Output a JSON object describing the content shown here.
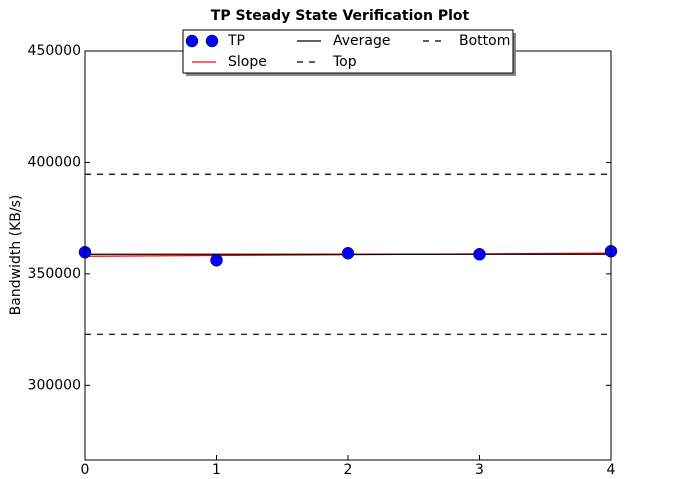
{
  "chart_data": {
    "type": "line",
    "title": "TP Steady State Verification Plot",
    "y_label": "Bandwidth (KB/s)",
    "xlim": [
      0,
      4
    ],
    "xticks": [
      0,
      1,
      2,
      3,
      4
    ],
    "ylim": [
      266500,
      450000
    ],
    "yticks": [
      300000,
      350000,
      400000,
      450000
    ],
    "legend": "upper center",
    "series": [
      {
        "name": "TP",
        "style": "marker",
        "color": "#0000ff",
        "x": [
          0,
          1,
          2,
          3,
          4
        ],
        "values": [
          359700,
          356100,
          359250,
          358800,
          360150
        ]
      },
      {
        "name": "Slope",
        "style": "solid",
        "color": "#ff0000",
        "x": [
          0,
          4
        ],
        "values": [
          357900,
          359300
        ]
      },
      {
        "name": "Average",
        "style": "solid",
        "color": "#000000",
        "x": [
          0,
          4
        ],
        "values": [
          358800,
          358800
        ]
      },
      {
        "name": "Top",
        "style": "dashed",
        "color": "#000000",
        "x": [
          0,
          4
        ],
        "values": [
          394700,
          394700
        ]
      },
      {
        "name": "Bottom",
        "style": "dashed",
        "color": "#000000",
        "x": [
          0,
          4
        ],
        "values": [
          322900,
          322900
        ]
      }
    ]
  }
}
